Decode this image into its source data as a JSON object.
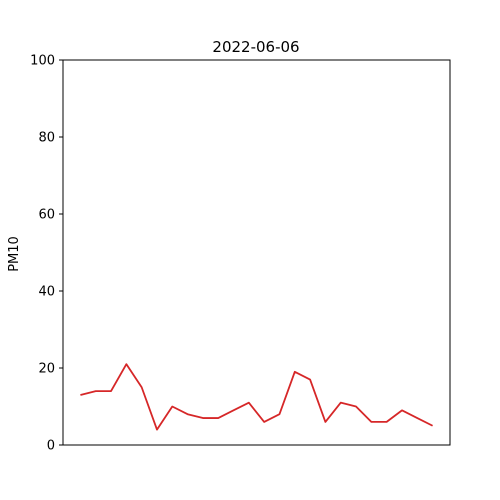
{
  "chart_data": {
    "type": "line",
    "title": "2022-06-06",
    "xlabel": "",
    "ylabel": "PM10",
    "ylim": [
      0,
      100
    ],
    "yticks": [
      "0",
      "20",
      "40",
      "60",
      "80",
      "100"
    ],
    "grid": false,
    "series": [
      {
        "color": "#d62728",
        "values": [
          13,
          14,
          14,
          21,
          15,
          4,
          10,
          8,
          7,
          7,
          9,
          11,
          6,
          8,
          19,
          17,
          6,
          11,
          10,
          6,
          6,
          9,
          7,
          5
        ]
      }
    ]
  }
}
